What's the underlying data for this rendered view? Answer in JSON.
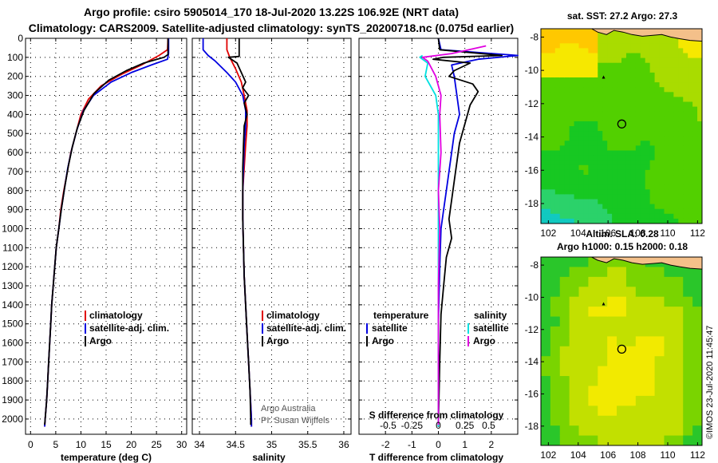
{
  "title": {
    "line1": "Argo profile: csiro 5905014_170 18-Jul-2020 13.22S 106.92E (NRT data)",
    "line2": "Climatology: CARS2009. Satellite-adjusted climatology: synTS_20200718.nc (0.075d earlier)"
  },
  "colors": {
    "climatology": "#e00000",
    "satellite": "#0000e0",
    "argo": "#000000",
    "satellite_s": "#00e0e0",
    "argo_s": "#e000e0",
    "land": "#f4c08a"
  },
  "chart_data": [
    {
      "type": "line",
      "id": "temperature",
      "xlabel": "temperature (deg C)",
      "ylabel": "",
      "xlim": [
        -1,
        31
      ],
      "ylim": [
        2080,
        0
      ],
      "xticks": [
        "0",
        "5",
        "10",
        "15",
        "20",
        "25",
        "30"
      ],
      "xtick_values": [
        0,
        5,
        10,
        15,
        20,
        25,
        30
      ],
      "yticks": [
        "0",
        "100",
        "200",
        "300",
        "400",
        "500",
        "600",
        "700",
        "800",
        "900",
        "1000",
        "1100",
        "1200",
        "1300",
        "1400",
        "1500",
        "1600",
        "1700",
        "1800",
        "1900",
        "2000"
      ],
      "ytick_values": [
        0,
        100,
        200,
        300,
        400,
        500,
        600,
        700,
        800,
        900,
        1000,
        1100,
        1200,
        1300,
        1400,
        1500,
        1600,
        1700,
        1800,
        1900,
        2000
      ],
      "legend": [
        "climatology",
        "satellite-adj. clim.",
        "Argo"
      ],
      "series": [
        {
          "name": "climatology",
          "color_key": "climatology",
          "points": [
            [
              27.3,
              0
            ],
            [
              27.2,
              60
            ],
            [
              25.5,
              90
            ],
            [
              22,
              140
            ],
            [
              18,
              190
            ],
            [
              14,
              250
            ],
            [
              11.5,
              320
            ],
            [
              10,
              400
            ],
            [
              9,
              500
            ],
            [
              8,
              600
            ],
            [
              7.3,
              700
            ],
            [
              6.6,
              800
            ],
            [
              6,
              900
            ],
            [
              5.6,
              1000
            ],
            [
              5.1,
              1100
            ],
            [
              4.8,
              1200
            ],
            [
              4.5,
              1300
            ],
            [
              4.2,
              1400
            ],
            [
              4,
              1500
            ],
            [
              3.8,
              1600
            ],
            [
              3.6,
              1700
            ],
            [
              3.4,
              1800
            ],
            [
              3.2,
              1900
            ],
            [
              2.9,
              2000
            ],
            [
              2.8,
              2040
            ]
          ]
        },
        {
          "name": "satellite-adj. clim.",
          "color_key": "satellite",
          "points": [
            [
              27.4,
              0
            ],
            [
              27.4,
              80
            ],
            [
              27.2,
              110
            ],
            [
              24,
              140
            ],
            [
              20,
              180
            ],
            [
              16,
              230
            ],
            [
              12.5,
              300
            ],
            [
              10.5,
              380
            ],
            [
              9.2,
              480
            ],
            [
              8.2,
              580
            ],
            [
              7.4,
              680
            ],
            [
              6.8,
              780
            ],
            [
              6.1,
              900
            ],
            [
              5.6,
              1000
            ],
            [
              5.1,
              1100
            ],
            [
              4.8,
              1200
            ],
            [
              4.5,
              1300
            ],
            [
              4.2,
              1400
            ],
            [
              4,
              1500
            ],
            [
              3.8,
              1600
            ],
            [
              3.6,
              1700
            ],
            [
              3.4,
              1800
            ],
            [
              3.2,
              1900
            ],
            [
              2.9,
              2000
            ],
            [
              2.8,
              2040
            ]
          ]
        },
        {
          "name": "Argo",
          "color_key": "argo",
          "points": [
            [
              27.3,
              0
            ],
            [
              27.3,
              85
            ],
            [
              26.5,
              100
            ],
            [
              22.5,
              130
            ],
            [
              19,
              170
            ],
            [
              15.5,
              220
            ],
            [
              12.6,
              290
            ],
            [
              10.6,
              380
            ],
            [
              9.3,
              470
            ],
            [
              8.3,
              570
            ],
            [
              7.5,
              670
            ],
            [
              6.8,
              780
            ],
            [
              6.1,
              900
            ],
            [
              5.6,
              1000
            ],
            [
              5.1,
              1100
            ],
            [
              4.8,
              1200
            ],
            [
              4.5,
              1300
            ],
            [
              4.2,
              1400
            ],
            [
              4,
              1500
            ],
            [
              3.8,
              1600
            ],
            [
              3.6,
              1700
            ],
            [
              3.4,
              1800
            ],
            [
              3.2,
              1900
            ],
            [
              2.9,
              2000
            ],
            [
              2.8,
              2030
            ]
          ]
        }
      ]
    },
    {
      "type": "line",
      "id": "salinity",
      "xlabel": "salinity",
      "xlim": [
        33.9,
        36.1
      ],
      "ylim": [
        2080,
        0
      ],
      "xticks": [
        "34",
        "34.5",
        "35",
        "35.5",
        "36"
      ],
      "xtick_values": [
        34,
        34.5,
        35,
        35.5,
        36
      ],
      "legend": [
        "climatology",
        "satellite-adj. clim.",
        "Argo"
      ],
      "annotation": [
        "Argo Australia",
        "PI: Susan Wijffels"
      ],
      "series": [
        {
          "name": "climatology",
          "color_key": "climatology",
          "points": [
            [
              34.38,
              0
            ],
            [
              34.38,
              60
            ],
            [
              34.42,
              100
            ],
            [
              34.5,
              160
            ],
            [
              34.58,
              230
            ],
            [
              34.62,
              300
            ],
            [
              34.66,
              380
            ],
            [
              34.66,
              460
            ],
            [
              34.64,
              560
            ],
            [
              34.62,
              680
            ],
            [
              34.6,
              800
            ],
            [
              34.6,
              950
            ],
            [
              34.61,
              1100
            ],
            [
              34.62,
              1250
            ],
            [
              34.64,
              1400
            ],
            [
              34.66,
              1550
            ],
            [
              34.68,
              1700
            ],
            [
              34.7,
              1850
            ],
            [
              34.72,
              2000
            ],
            [
              34.72,
              2040
            ]
          ]
        },
        {
          "name": "satellite-adj. clim.",
          "color_key": "satellite",
          "points": [
            [
              34.05,
              0
            ],
            [
              34.05,
              60
            ],
            [
              34.12,
              90
            ],
            [
              34.22,
              120
            ],
            [
              34.38,
              180
            ],
            [
              34.5,
              230
            ],
            [
              34.6,
              300
            ],
            [
              34.64,
              380
            ],
            [
              34.64,
              460
            ],
            [
              34.62,
              560
            ],
            [
              34.61,
              680
            ],
            [
              34.6,
              800
            ],
            [
              34.6,
              950
            ],
            [
              34.61,
              1100
            ],
            [
              34.62,
              1250
            ],
            [
              34.64,
              1400
            ],
            [
              34.66,
              1550
            ],
            [
              34.68,
              1700
            ],
            [
              34.7,
              1850
            ],
            [
              34.72,
              2000
            ],
            [
              34.72,
              2040
            ]
          ]
        },
        {
          "name": "Argo",
          "color_key": "argo",
          "points": [
            [
              34.55,
              0
            ],
            [
              34.55,
              95
            ],
            [
              34.4,
              100
            ],
            [
              34.52,
              130
            ],
            [
              34.58,
              180
            ],
            [
              34.64,
              230
            ],
            [
              34.6,
              260
            ],
            [
              34.68,
              300
            ],
            [
              34.62,
              340
            ],
            [
              34.66,
              400
            ],
            [
              34.62,
              460
            ],
            [
              34.61,
              560
            ],
            [
              34.6,
              680
            ],
            [
              34.6,
              800
            ],
            [
              34.6,
              950
            ],
            [
              34.61,
              1100
            ],
            [
              34.62,
              1250
            ],
            [
              34.64,
              1400
            ],
            [
              34.66,
              1550
            ],
            [
              34.68,
              1700
            ],
            [
              34.7,
              1850
            ],
            [
              34.71,
              2000
            ],
            [
              34.71,
              2030
            ]
          ]
        }
      ]
    },
    {
      "type": "line",
      "id": "difference",
      "xlabel": "T difference from climatology",
      "secondary_label": "S difference from climatology",
      "xlim": [
        -3,
        3
      ],
      "ylim": [
        2080,
        0
      ],
      "xticks": [
        "-2",
        "-1",
        "0",
        "1",
        "2"
      ],
      "xtick_values": [
        -2,
        -1,
        0,
        1,
        2
      ],
      "s_xticks": [
        "-0.5",
        "-0.25",
        "0",
        "0.25",
        "0.5"
      ],
      "s_xtick_values": [
        -1.9,
        -1,
        0,
        1,
        1.9
      ],
      "legend_headers": [
        "temperature",
        "salinity"
      ],
      "legend": [
        "satellite",
        "Argo",
        "satellite",
        "Argo"
      ],
      "series": [
        {
          "name": "temperature satellite",
          "color_key": "satellite",
          "points": [
            [
              0,
              0
            ],
            [
              0.1,
              60
            ],
            [
              3,
              90
            ],
            [
              1.5,
              110
            ],
            [
              0.5,
              140
            ],
            [
              0.6,
              200
            ],
            [
              0.7,
              300
            ],
            [
              0.8,
              400
            ],
            [
              0.6,
              500
            ],
            [
              0.5,
              600
            ],
            [
              0.4,
              700
            ],
            [
              0.3,
              800
            ],
            [
              0.2,
              900
            ],
            [
              0.1,
              1000
            ],
            [
              0.05,
              1200
            ],
            [
              0,
              1500
            ],
            [
              0,
              2040
            ]
          ]
        },
        {
          "name": "temperature Argo",
          "color_key": "argo",
          "points": [
            [
              0,
              0
            ],
            [
              0.05,
              60
            ],
            [
              2.4,
              90
            ],
            [
              0.2,
              100
            ],
            [
              -0.2,
              110
            ],
            [
              1.2,
              130
            ],
            [
              0.6,
              170
            ],
            [
              0.4,
              200
            ],
            [
              1.3,
              240
            ],
            [
              1.5,
              280
            ],
            [
              1.2,
              350
            ],
            [
              1.0,
              450
            ],
            [
              0.8,
              550
            ],
            [
              0.7,
              650
            ],
            [
              0.6,
              750
            ],
            [
              0.5,
              850
            ],
            [
              0.4,
              950
            ],
            [
              0.5,
              1050
            ],
            [
              0.3,
              1150
            ],
            [
              0.2,
              1300
            ],
            [
              0.1,
              1450
            ],
            [
              0.05,
              1700
            ],
            [
              0,
              2030
            ]
          ]
        },
        {
          "name": "salinity satellite",
          "color_key": "satellite_s",
          "points": [
            [
              -0.6,
              90
            ],
            [
              -0.7,
              100
            ],
            [
              -0.4,
              130
            ],
            [
              -0.5,
              200
            ],
            [
              -0.1,
              300
            ],
            [
              0,
              400
            ],
            [
              0,
              700
            ],
            [
              0,
              1000
            ],
            [
              0,
              2040
            ]
          ]
        },
        {
          "name": "salinity Argo",
          "color_key": "argo_s",
          "points": [
            [
              1.8,
              40
            ],
            [
              0.5,
              80
            ],
            [
              -0.6,
              100
            ],
            [
              -0.4,
              120
            ],
            [
              -0.1,
              200
            ],
            [
              0.1,
              300
            ],
            [
              0.05,
              400
            ],
            [
              0.1,
              600
            ],
            [
              0,
              800
            ],
            [
              0.05,
              1000
            ],
            [
              0,
              1300
            ],
            [
              0,
              2030
            ]
          ]
        }
      ]
    },
    {
      "type": "heatmap",
      "id": "sst-map",
      "title": "sat. SST: 27.2 Argo: 27.3",
      "xlim": [
        101.5,
        112.3
      ],
      "ylim": [
        -19.2,
        -7.5
      ],
      "xticks": [
        "102",
        "104",
        "106",
        "108",
        "110",
        "112"
      ],
      "xtick_values": [
        102,
        104,
        106,
        108,
        110,
        112
      ],
      "yticks": [
        "-8",
        "-10",
        "-12",
        "-14",
        "-16",
        "-18"
      ],
      "ytick_values": [
        -8,
        -10,
        -12,
        -14,
        -16,
        -18
      ],
      "argo_position": [
        106.92,
        -13.22
      ],
      "previous_position": [
        105.7,
        -10.4
      ],
      "palette": [
        "#00a9e8",
        "#11c9c0",
        "#2bd26a",
        "#17c822",
        "#52d000",
        "#a9dc00",
        "#f6e800",
        "#ffc800"
      ]
    },
    {
      "type": "heatmap",
      "id": "sla-map",
      "title_lines": [
        "Altim. SLA: 0.28",
        "Argo h1000: 0.15 h2000: 0.18"
      ],
      "xlim": [
        101.5,
        112.3
      ],
      "ylim": [
        -19.2,
        -7.5
      ],
      "xticks": [
        "102",
        "104",
        "106",
        "108",
        "110",
        "112"
      ],
      "xtick_values": [
        102,
        104,
        106,
        108,
        110,
        112
      ],
      "yticks": [
        "-8",
        "-10",
        "-12",
        "-14",
        "-16",
        "-18"
      ],
      "ytick_values": [
        -8,
        -10,
        -12,
        -14,
        -16,
        -18
      ],
      "argo_position": [
        106.92,
        -13.22
      ],
      "previous_position": [
        105.7,
        -10.4
      ],
      "palette": [
        "#2ac62a",
        "#7ad400",
        "#c2e000",
        "#f2ea00",
        "#ffc800",
        "#ff9a00"
      ]
    }
  ],
  "watermark": "©IMOS 23-Jul-2020 11:45:47"
}
